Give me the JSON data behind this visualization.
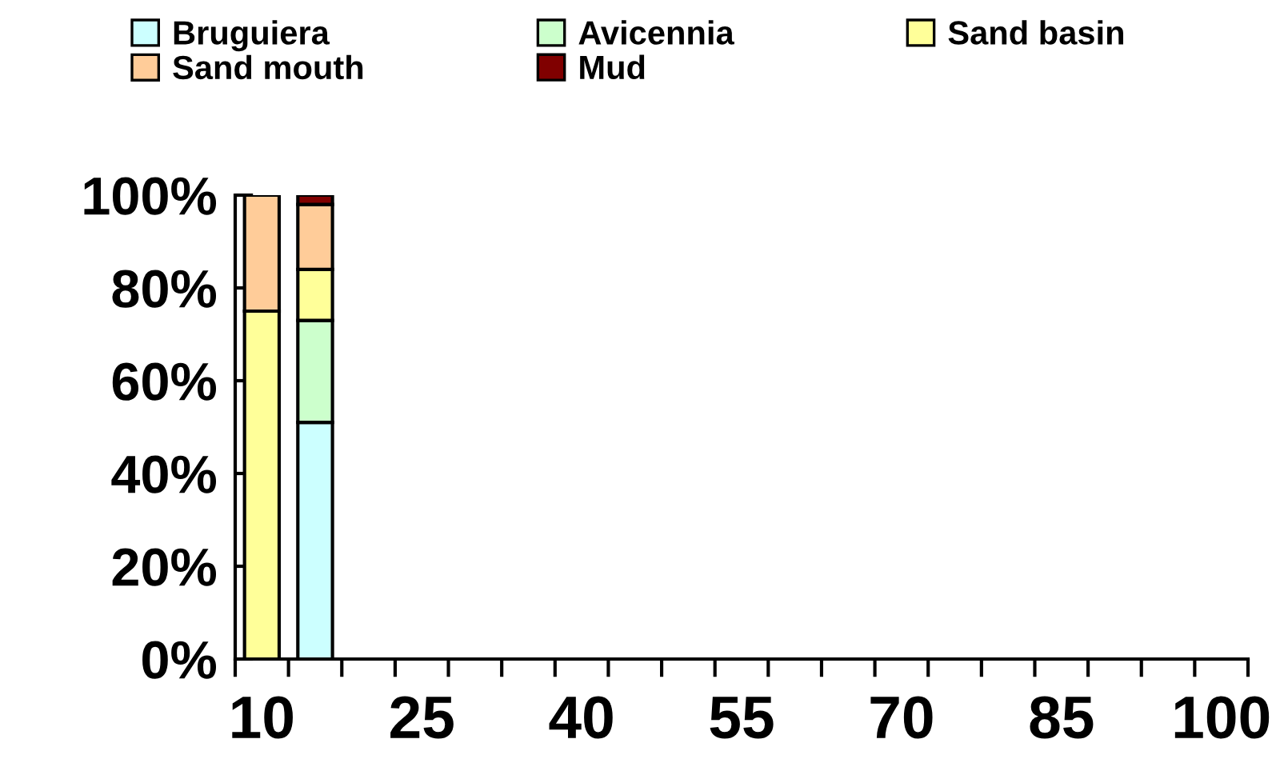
{
  "chart_data": {
    "type": "bar",
    "stacked": true,
    "categories": [
      "10",
      null,
      null,
      "25",
      null,
      null,
      "40",
      null,
      null,
      "55",
      null,
      null,
      "70",
      null,
      null,
      "85",
      null,
      null,
      "100"
    ],
    "series": [
      {
        "name": "Bruguiera",
        "color": "#ccffff",
        "values": [
          null,
          51,
          null,
          null,
          null,
          null,
          null,
          null,
          null,
          null,
          null,
          null,
          null,
          null,
          null,
          null,
          null,
          null,
          null
        ]
      },
      {
        "name": "Avicennia",
        "color": "#ccffcc",
        "values": [
          null,
          22,
          null,
          null,
          null,
          null,
          null,
          null,
          null,
          null,
          null,
          null,
          null,
          null,
          null,
          null,
          null,
          null,
          null
        ]
      },
      {
        "name": "Sand basin",
        "color": "#ffff99",
        "values": [
          75,
          11,
          null,
          null,
          null,
          null,
          null,
          null,
          null,
          null,
          null,
          null,
          null,
          null,
          null,
          null,
          null,
          null,
          null
        ]
      },
      {
        "name": "Sand mouth",
        "color": "#ffcc99",
        "values": [
          25,
          14,
          null,
          null,
          null,
          null,
          null,
          null,
          null,
          null,
          null,
          null,
          null,
          null,
          null,
          null,
          null,
          null,
          null
        ]
      },
      {
        "name": "Mud",
        "color": "#800000",
        "values": [
          null,
          2,
          null,
          null,
          null,
          null,
          null,
          null,
          null,
          null,
          null,
          null,
          null,
          null,
          null,
          null,
          null,
          null,
          null
        ]
      }
    ],
    "ylim": [
      0,
      100
    ],
    "yticks": [
      {
        "value": 0,
        "label": "0%"
      },
      {
        "value": 20,
        "label": "20%"
      },
      {
        "value": 40,
        "label": "40%"
      },
      {
        "value": 60,
        "label": "60%"
      },
      {
        "value": 80,
        "label": "80%"
      },
      {
        "value": 100,
        "label": "100%"
      }
    ],
    "grid": false,
    "legend": "top"
  }
}
